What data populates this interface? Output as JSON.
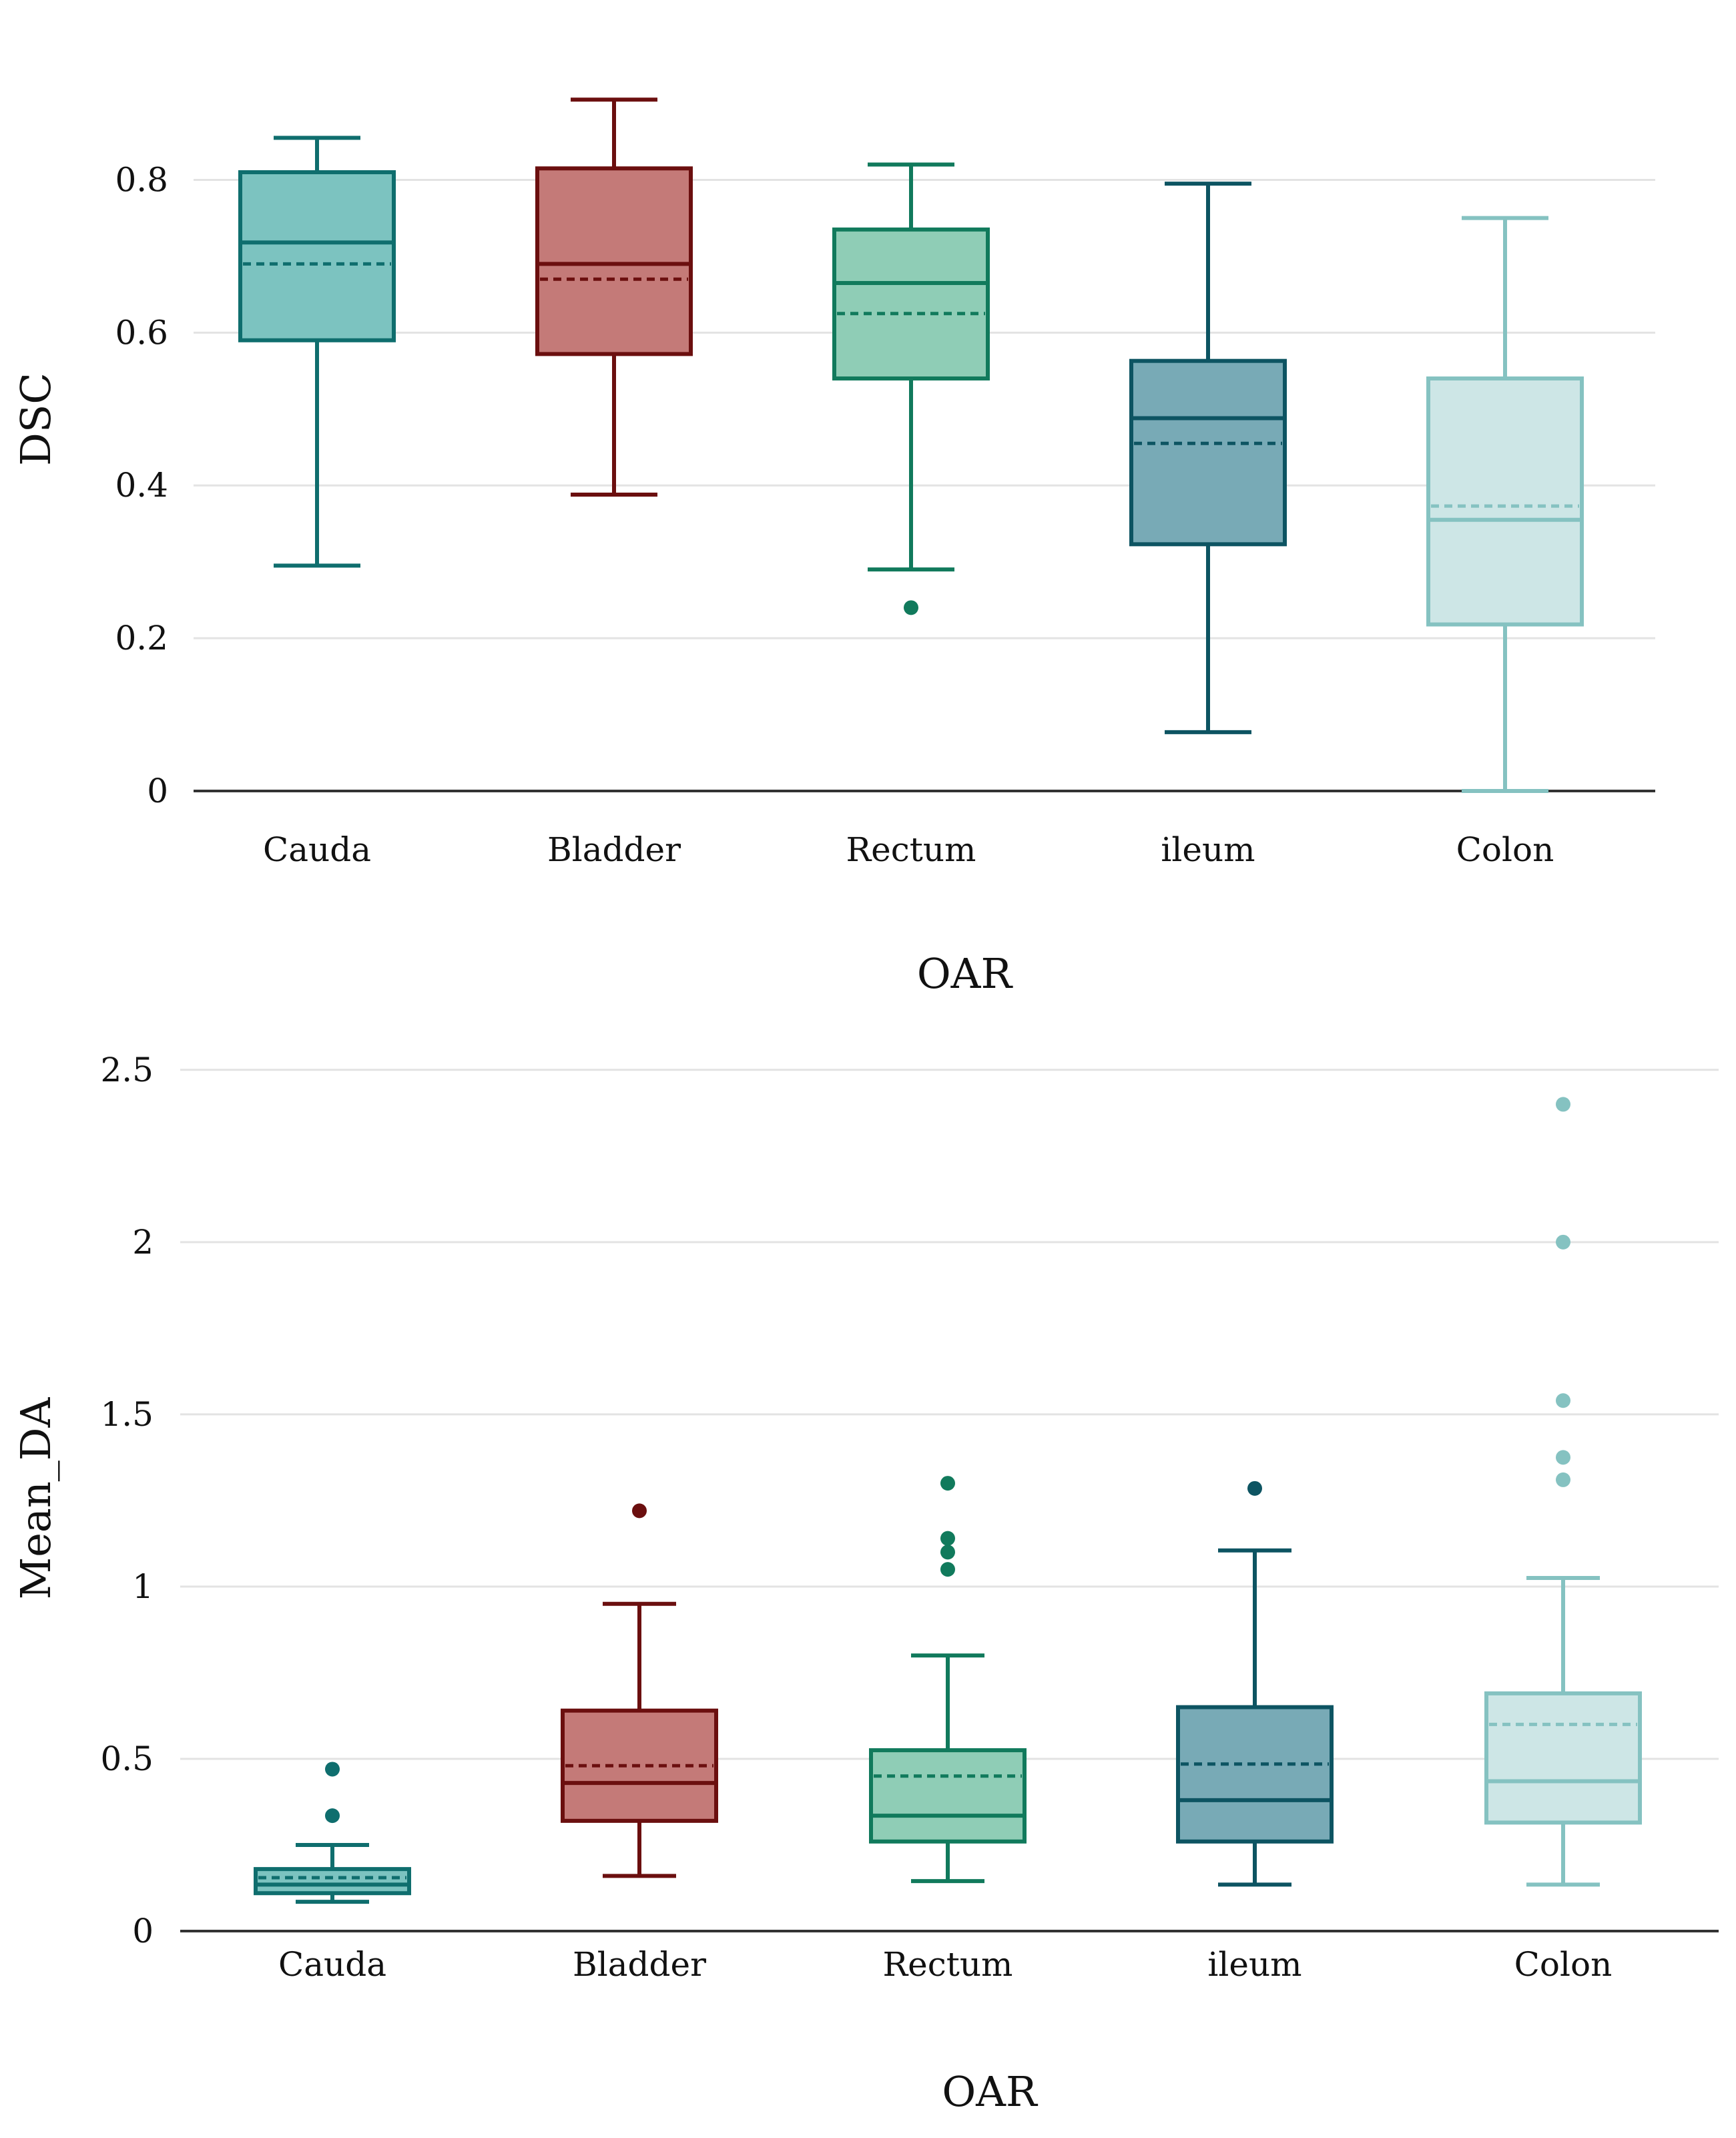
{
  "chart_data": [
    {
      "type": "box",
      "xlabel": "OAR",
      "ylabel": "DSC",
      "ylim": [
        0,
        0.9
      ],
      "yticks": [
        0,
        0.2,
        0.4,
        0.6,
        0.8
      ],
      "ytick_labels": [
        "0",
        "0.2",
        "0.4",
        "0.6",
        "0.8"
      ],
      "grid": true,
      "categories": [
        "Cauda",
        "Bladder",
        "Rectum",
        "ileum",
        "Colon"
      ],
      "series": [
        {
          "name": "Cauda",
          "min": 0.295,
          "q1": 0.59,
          "median": 0.718,
          "q3": 0.81,
          "max": 0.855,
          "mean": 0.69,
          "outliers": []
        },
        {
          "name": "Bladder",
          "min": 0.388,
          "q1": 0.572,
          "median": 0.69,
          "q3": 0.815,
          "max": 0.905,
          "mean": 0.67,
          "outliers": []
        },
        {
          "name": "Rectum",
          "min": 0.29,
          "q1": 0.54,
          "median": 0.665,
          "q3": 0.735,
          "max": 0.82,
          "mean": 0.625,
          "outliers": [
            0.24
          ]
        },
        {
          "name": "ileum",
          "min": 0.077,
          "q1": 0.323,
          "median": 0.488,
          "q3": 0.563,
          "max": 0.795,
          "mean": 0.455,
          "outliers": []
        },
        {
          "name": "Colon",
          "min": 0.0,
          "q1": 0.218,
          "median": 0.355,
          "q3": 0.54,
          "max": 0.75,
          "mean": 0.373,
          "outliers": []
        }
      ]
    },
    {
      "type": "box",
      "xlabel": "OAR",
      "ylabel": "Mean_DA",
      "ylim": [
        0,
        2.55
      ],
      "yticks": [
        0,
        0.5,
        1,
        1.5,
        2,
        2.5
      ],
      "ytick_labels": [
        "0",
        "0.5",
        "1",
        "1.5",
        "2",
        "2.5"
      ],
      "grid": true,
      "categories": [
        "Cauda",
        "Bladder",
        "Rectum",
        "ileum",
        "Colon"
      ],
      "series": [
        {
          "name": "Cauda",
          "min": 0.085,
          "q1": 0.11,
          "median": 0.135,
          "q3": 0.18,
          "max": 0.25,
          "mean": 0.155,
          "outliers": [
            0.335,
            0.47
          ]
        },
        {
          "name": "Bladder",
          "min": 0.16,
          "q1": 0.32,
          "median": 0.43,
          "q3": 0.64,
          "max": 0.95,
          "mean": 0.48,
          "outliers": [
            1.22
          ]
        },
        {
          "name": "Rectum",
          "min": 0.145,
          "q1": 0.26,
          "median": 0.335,
          "q3": 0.525,
          "max": 0.8,
          "mean": 0.45,
          "outliers": [
            1.05,
            1.1,
            1.14,
            1.3
          ]
        },
        {
          "name": "ileum",
          "min": 0.135,
          "q1": 0.26,
          "median": 0.38,
          "q3": 0.65,
          "max": 1.105,
          "mean": 0.485,
          "outliers": [
            1.285
          ]
        },
        {
          "name": "Colon",
          "min": 0.135,
          "q1": 0.315,
          "median": 0.435,
          "q3": 0.69,
          "max": 1.025,
          "mean": 0.6,
          "outliers": [
            1.31,
            1.375,
            1.54,
            2.0,
            2.4
          ]
        }
      ]
    }
  ],
  "colors": {
    "Cauda": {
      "stroke": "#0f6e6e",
      "fill": "#7cc3c0"
    },
    "Bladder": {
      "stroke": "#6b0f0f",
      "fill": "#c47a78"
    },
    "Rectum": {
      "stroke": "#117a5c",
      "fill": "#8fcdb6"
    },
    "ileum": {
      "stroke": "#0d5462",
      "fill": "#78aab6"
    },
    "Colon": {
      "stroke": "#85c2c1",
      "fill": "#cde6e6"
    }
  }
}
